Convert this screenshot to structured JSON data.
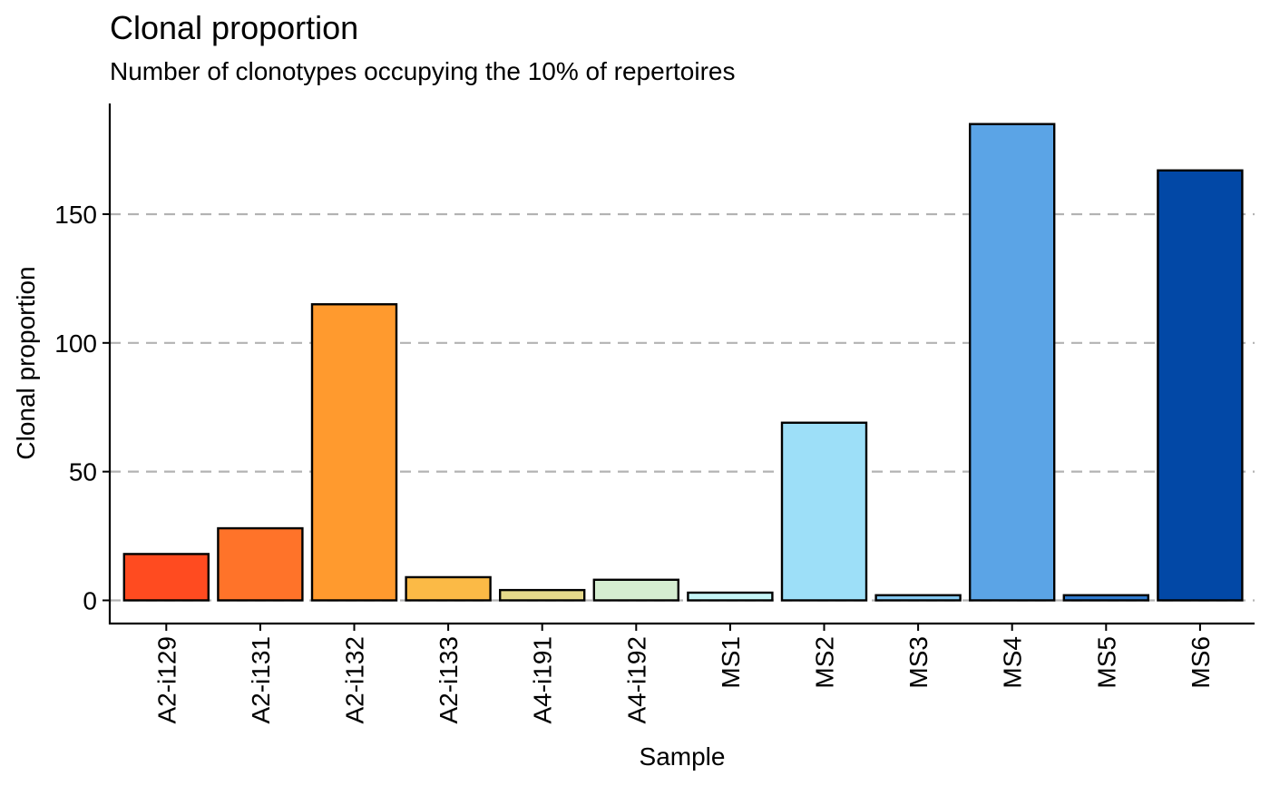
{
  "chart_data": {
    "type": "bar",
    "title": "Clonal proportion",
    "subtitle": "Number of clonotypes occupying the 10% of repertoires",
    "xlabel": "Sample",
    "ylabel": "Clonal proportion",
    "categories": [
      "A2-i129",
      "A2-i131",
      "A2-i132",
      "A2-i133",
      "A4-i191",
      "A4-i192",
      "MS1",
      "MS2",
      "MS3",
      "MS4",
      "MS5",
      "MS6"
    ],
    "values": [
      18,
      28,
      115,
      9,
      4,
      8,
      3,
      69,
      2,
      185,
      2,
      167
    ],
    "colors": [
      "#FF4B20",
      "#FF7329",
      "#FF9A2E",
      "#FBBA46",
      "#E6D98B",
      "#D5EED1",
      "#C5F4F5",
      "#9DDFF8",
      "#84C8F0",
      "#5BA4E6",
      "#2F7ACD",
      "#0248A6"
    ],
    "y_ticks": [
      0,
      50,
      100,
      150
    ],
    "ylim": [
      -9,
      193
    ],
    "grid": "horizontal-dashed",
    "legend": "none"
  }
}
